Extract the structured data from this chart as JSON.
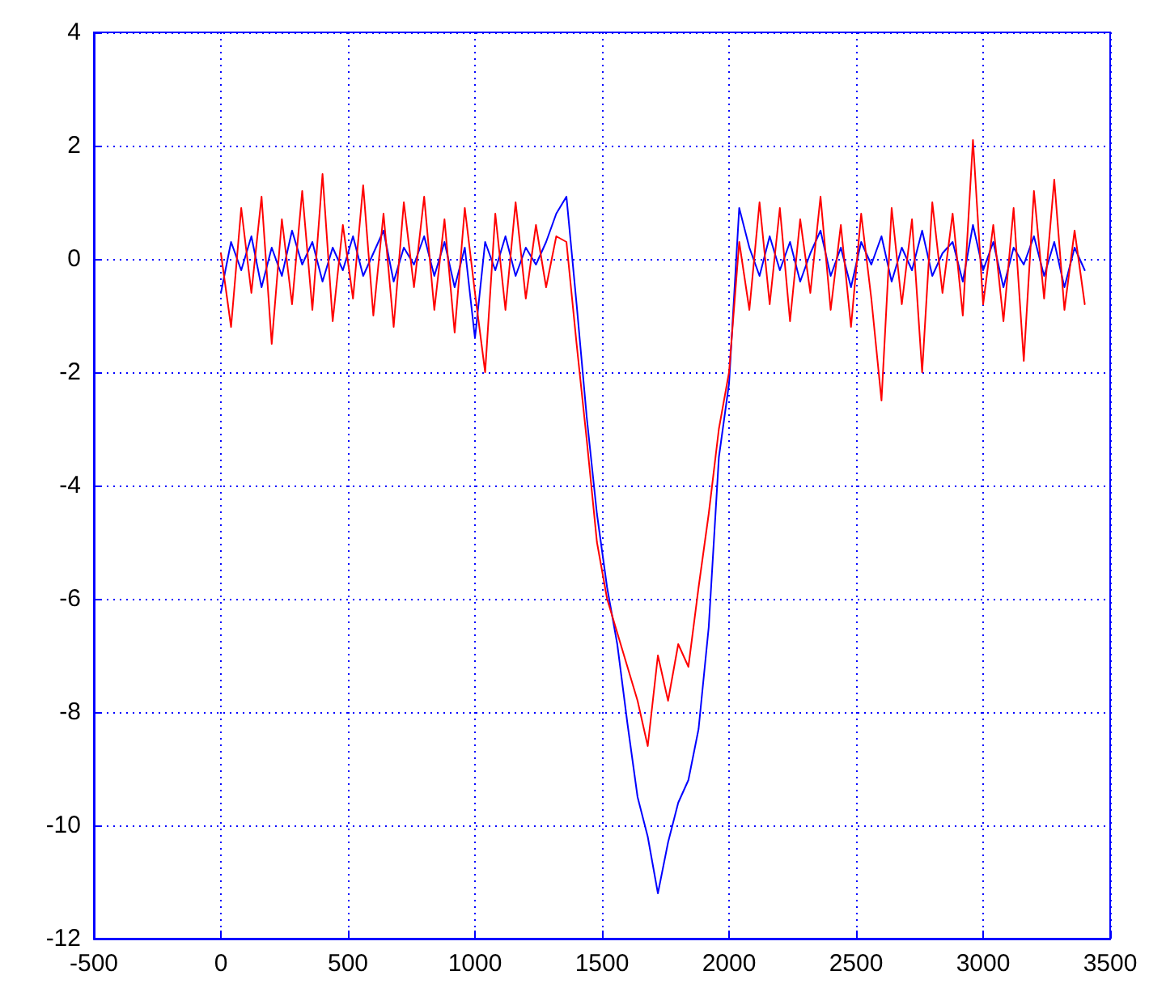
{
  "chart_data": {
    "type": "line",
    "x": [
      0,
      40,
      80,
      120,
      160,
      200,
      240,
      280,
      320,
      360,
      400,
      440,
      480,
      520,
      560,
      600,
      640,
      680,
      720,
      760,
      800,
      840,
      880,
      920,
      960,
      1000,
      1040,
      1080,
      1120,
      1160,
      1200,
      1240,
      1280,
      1320,
      1360,
      1400,
      1440,
      1480,
      1520,
      1560,
      1600,
      1640,
      1680,
      1720,
      1760,
      1800,
      1840,
      1880,
      1920,
      1960,
      2000,
      2040,
      2080,
      2120,
      2160,
      2200,
      2240,
      2280,
      2320,
      2360,
      2400,
      2440,
      2480,
      2520,
      2560,
      2600,
      2640,
      2680,
      2720,
      2760,
      2800,
      2840,
      2880,
      2920,
      2960,
      3000,
      3040,
      3080,
      3120,
      3160,
      3200,
      3240,
      3280,
      3320,
      3360,
      3400
    ],
    "series": [
      {
        "color": "#0000ff",
        "values": [
          -0.6,
          0.3,
          -0.2,
          0.4,
          -0.5,
          0.2,
          -0.3,
          0.5,
          -0.1,
          0.3,
          -0.4,
          0.2,
          -0.2,
          0.4,
          -0.3,
          0.1,
          0.5,
          -0.4,
          0.2,
          -0.1,
          0.4,
          -0.3,
          0.3,
          -0.5,
          0.2,
          -1.4,
          0.3,
          -0.2,
          0.4,
          -0.3,
          0.2,
          -0.1,
          0.3,
          0.8,
          1.1,
          -0.8,
          -2.8,
          -4.5,
          -5.8,
          -6.8,
          -8.2,
          -9.5,
          -10.2,
          -11.2,
          -10.3,
          -9.6,
          -9.2,
          -8.3,
          -6.5,
          -3.5,
          -2.2,
          0.9,
          0.2,
          -0.3,
          0.4,
          -0.2,
          0.3,
          -0.4,
          0.1,
          0.5,
          -0.3,
          0.2,
          -0.5,
          0.3,
          -0.1,
          0.4,
          -0.4,
          0.2,
          -0.2,
          0.5,
          -0.3,
          0.1,
          0.3,
          -0.4,
          0.6,
          -0.2,
          0.3,
          -0.5,
          0.2,
          -0.1,
          0.4,
          -0.3,
          0.3,
          -0.5,
          0.2,
          -0.2
        ]
      },
      {
        "color": "#ff0000",
        "values": [
          0.1,
          -1.2,
          0.9,
          -0.6,
          1.1,
          -1.5,
          0.7,
          -0.8,
          1.2,
          -0.9,
          1.5,
          -1.1,
          0.6,
          -0.7,
          1.3,
          -1.0,
          0.8,
          -1.2,
          1.0,
          -0.5,
          1.1,
          -0.9,
          0.7,
          -1.3,
          0.9,
          -0.6,
          -2.0,
          0.8,
          -0.9,
          1.0,
          -0.7,
          0.6,
          -0.5,
          0.4,
          0.3,
          -1.5,
          -3.2,
          -5.0,
          -6.0,
          -6.6,
          -7.2,
          -7.8,
          -8.6,
          -7.0,
          -7.8,
          -6.8,
          -7.2,
          -5.8,
          -4.5,
          -3.0,
          -2.0,
          0.3,
          -0.9,
          1.0,
          -0.8,
          0.9,
          -1.1,
          0.7,
          -0.6,
          1.1,
          -0.9,
          0.6,
          -1.2,
          0.8,
          -0.7,
          -2.5,
          0.9,
          -0.8,
          0.7,
          -2.0,
          1.0,
          -0.6,
          0.8,
          -1.0,
          2.1,
          -0.8,
          0.6,
          -1.1,
          0.9,
          -1.8,
          1.2,
          -0.7,
          1.4,
          -0.9,
          0.5,
          -0.8
        ]
      }
    ],
    "xlim": [
      -500,
      3500
    ],
    "xticks": [
      -500,
      0,
      500,
      1000,
      1500,
      2000,
      2500,
      3000,
      3500
    ],
    "ylim": [
      -12,
      4
    ],
    "yticks": [
      -12,
      -10,
      -8,
      -6,
      -4,
      -2,
      0,
      2,
      4
    ],
    "grid": true,
    "marker": "none",
    "line_style": "solid"
  }
}
